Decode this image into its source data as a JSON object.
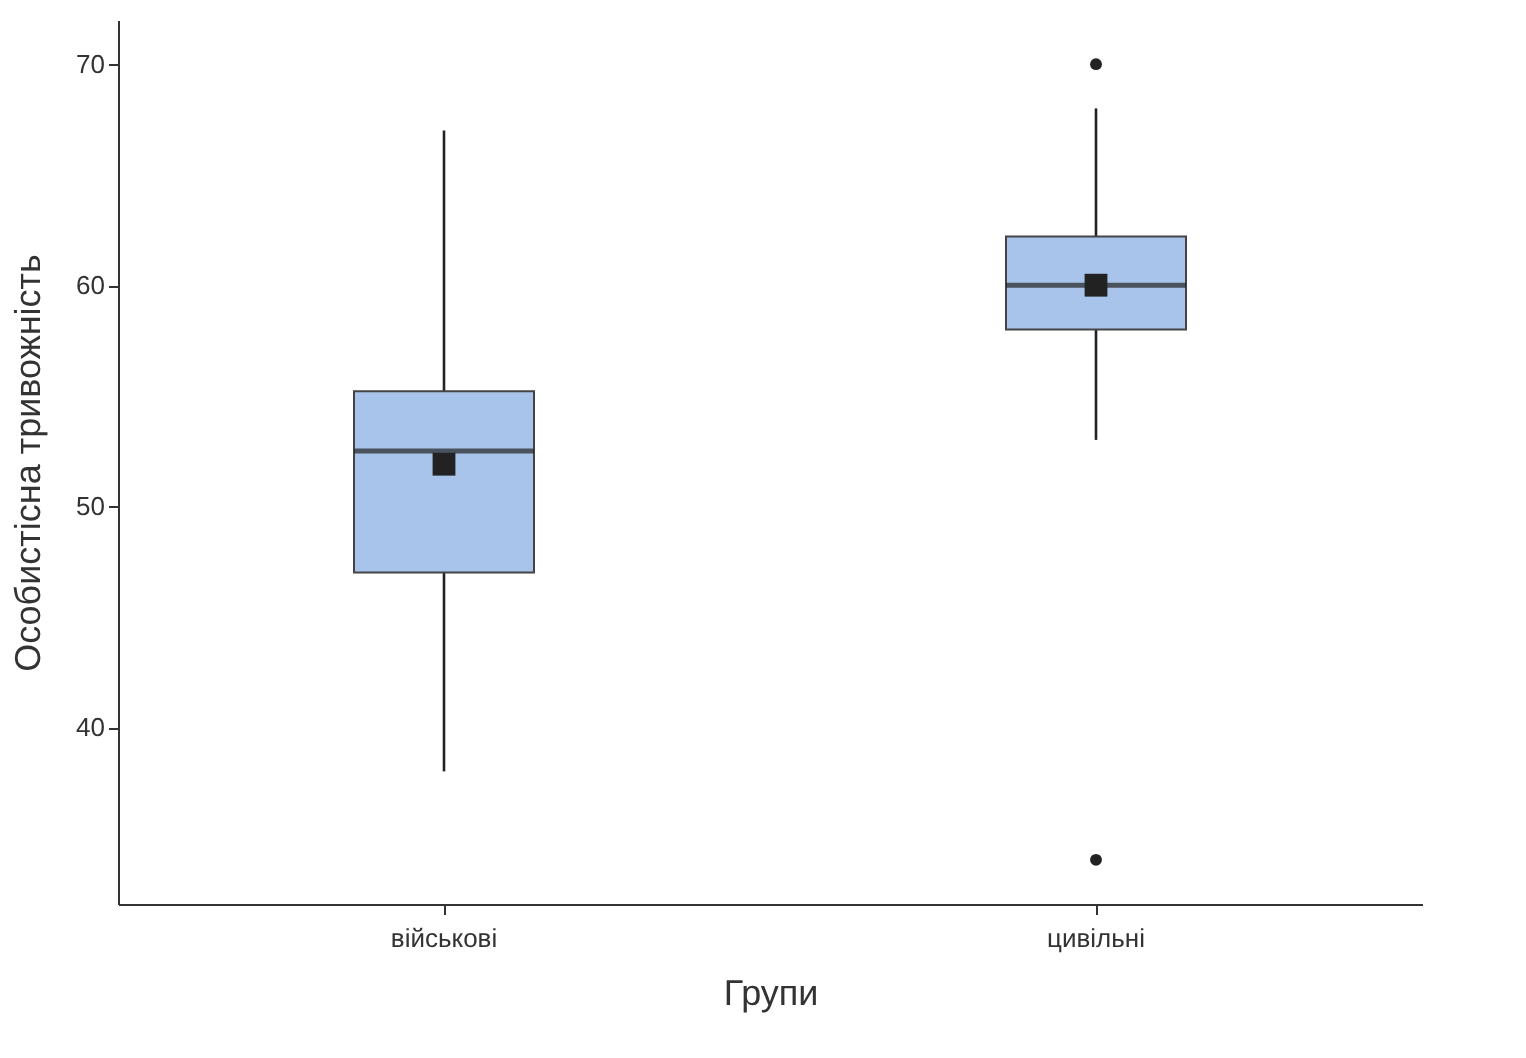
{
  "chart_data": {
    "type": "box",
    "xlabel": "Групи",
    "ylabel": "Особистісна тривожність",
    "categories": [
      "військові",
      "цивільні"
    ],
    "series": [
      {
        "color": "#a9c4ea",
        "boxes": [
          {
            "low": 38,
            "q1": 47,
            "median": 52.5,
            "q3": 55.2,
            "high": 67,
            "mean": 51.9
          },
          {
            "low": 53,
            "q1": 58,
            "median": 60,
            "q3": 62.2,
            "high": 68,
            "mean": 60,
            "outliers": [
              70,
              34
            ]
          }
        ]
      }
    ],
    "ylim": [
      32,
      72
    ],
    "yticks": [
      40,
      50,
      60,
      70
    ]
  }
}
